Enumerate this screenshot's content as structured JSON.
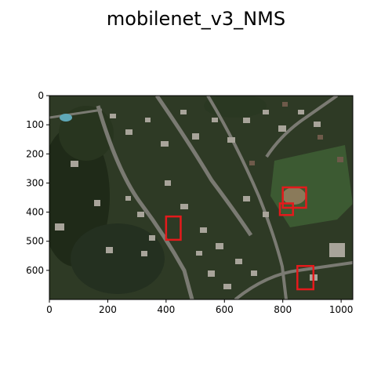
{
  "chart_data": {
    "type": "image",
    "title": "mobilenet_v3_NMS",
    "xlabel": "",
    "ylabel": "",
    "xlim": [
      0,
      1040
    ],
    "ylim": [
      700,
      0
    ],
    "x_ticks": [
      0,
      200,
      400,
      600,
      800,
      1000
    ],
    "y_ticks": [
      0,
      100,
      200,
      300,
      400,
      500,
      600
    ],
    "box_color": "#e41a1c",
    "boxes": [
      {
        "x": [
          800,
          880
        ],
        "y": [
          315,
          385
        ]
      },
      {
        "x": [
          790,
          835
        ],
        "y": [
          370,
          410
        ]
      },
      {
        "x": [
          400,
          450
        ],
        "y": [
          415,
          495
        ]
      },
      {
        "x": [
          850,
          905
        ],
        "y": [
          585,
          665
        ]
      }
    ]
  }
}
